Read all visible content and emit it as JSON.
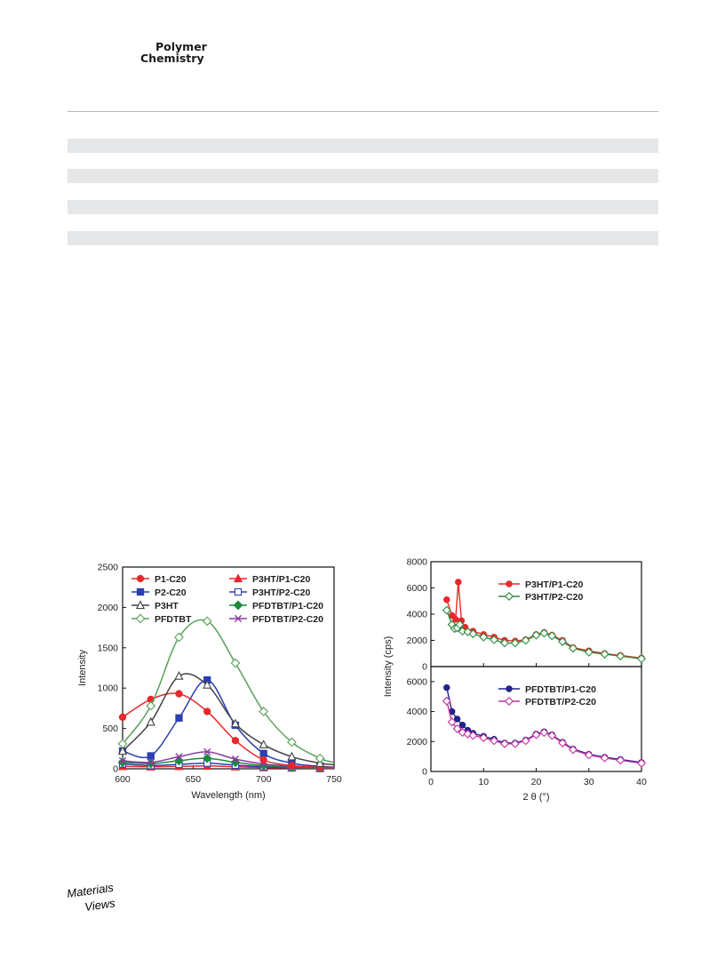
{
  "header": {
    "journal_line1": "Polymer",
    "journal_line2": "Chemistry"
  },
  "footer": {
    "logo_line1": "Materials",
    "logo_line2": "Views"
  },
  "colors": {
    "band": "#e6e7e8",
    "red": "#e8282a",
    "blue": "#2a3fb0",
    "navy": "#23238a",
    "green": "#3a9a3a",
    "darkgreen": "#1c8a3c",
    "pfdtbt": "#2e8b3e",
    "purple": "#8a3aa0",
    "magenta": "#c030a0",
    "gray": "#444444"
  },
  "chart_data": [
    {
      "type": "line",
      "xlabel": "Wavelength (nm)",
      "ylabel": "Intensity",
      "xlim": [
        600,
        750
      ],
      "ylim": [
        0,
        2500
      ],
      "xticks": [
        "600",
        "650",
        "700",
        "750"
      ],
      "yticks": [
        "0",
        "500",
        "1000",
        "1500",
        "2000",
        "2500"
      ],
      "legend": "top",
      "series": [
        {
          "name": "P1-C20",
          "color": "#e8282a",
          "marker": "circle",
          "filled": true,
          "x": [
            600,
            620,
            640,
            660,
            680,
            700,
            720,
            740,
            750
          ],
          "y": [
            640,
            860,
            930,
            710,
            350,
            110,
            40,
            20,
            15
          ]
        },
        {
          "name": "P2-C20",
          "color": "#2a3fb0",
          "marker": "square",
          "filled": true,
          "x": [
            600,
            620,
            640,
            660,
            680,
            700,
            720,
            740,
            750
          ],
          "y": [
            220,
            160,
            630,
            1100,
            540,
            190,
            70,
            30,
            20
          ]
        },
        {
          "name": "P3HT",
          "color": "#444444",
          "marker": "triangle",
          "filled": false,
          "x": [
            600,
            620,
            640,
            660,
            680,
            700,
            720,
            740,
            750
          ],
          "y": [
            220,
            580,
            1150,
            1040,
            560,
            300,
            150,
            70,
            50
          ]
        },
        {
          "name": "PFDTBT",
          "color": "#5aa05a",
          "marker": "diamond",
          "filled": false,
          "x": [
            600,
            620,
            640,
            660,
            680,
            700,
            720,
            740,
            750
          ],
          "y": [
            310,
            780,
            1630,
            1830,
            1310,
            710,
            330,
            130,
            80
          ]
        },
        {
          "name": "P3HT/P1-C20",
          "color": "#e8282a",
          "marker": "triangle",
          "filled": true,
          "x": [
            600,
            620,
            640,
            660,
            680,
            700,
            720,
            740,
            750
          ],
          "y": [
            30,
            25,
            30,
            35,
            25,
            15,
            10,
            5,
            5
          ]
        },
        {
          "name": "P3HT/P2-C20",
          "color": "#2a3fb0",
          "marker": "square",
          "filled": false,
          "x": [
            600,
            620,
            640,
            660,
            680,
            700,
            720,
            740,
            750
          ],
          "y": [
            60,
            40,
            55,
            70,
            45,
            25,
            15,
            10,
            5
          ]
        },
        {
          "name": "PFDTBT/P1-C20",
          "color": "#1c8a3c",
          "marker": "diamond",
          "filled": true,
          "x": [
            600,
            620,
            640,
            660,
            680,
            700,
            720,
            740,
            750
          ],
          "y": [
            80,
            65,
            100,
            130,
            80,
            40,
            20,
            10,
            8
          ]
        },
        {
          "name": "PFDTBT/P2-C20",
          "color": "#8a3aa0",
          "marker": "x",
          "filled": false,
          "x": [
            600,
            620,
            640,
            660,
            680,
            700,
            720,
            740,
            750
          ],
          "y": [
            100,
            80,
            150,
            210,
            120,
            60,
            30,
            15,
            10
          ]
        }
      ]
    },
    {
      "type": "line",
      "xlabel": "2 θ (°)",
      "ylabel": "Intensity (cps)",
      "xlim": [
        0,
        40
      ],
      "xticks": [
        "0",
        "10",
        "20",
        "30",
        "40"
      ],
      "panels": [
        {
          "ylim": [
            0,
            8000
          ],
          "yticks": [
            "0",
            "2000",
            "4000",
            "6000",
            "8000"
          ],
          "legend": "top-center",
          "series": [
            {
              "name": "P3HT/P1-C20",
              "color": "#e8282a",
              "marker": "circle",
              "filled": true,
              "x": [
                3,
                4,
                4.7,
                5.2,
                5.8,
                6.5,
                8,
                10,
                12,
                14,
                16,
                18,
                20,
                21.5,
                23,
                25,
                27,
                30,
                33,
                36,
                40
              ],
              "y": [
                5100,
                3900,
                3600,
                6450,
                3500,
                3000,
                2700,
                2450,
                2250,
                2000,
                1950,
                2050,
                2450,
                2600,
                2400,
                2000,
                1450,
                1200,
                1000,
                850,
                650
              ]
            },
            {
              "name": "P3HT/P2-C20",
              "color": "#2e8b3e",
              "marker": "diamond",
              "filled": false,
              "x": [
                3,
                4,
                4.5,
                5,
                5.5,
                6,
                7,
                8,
                10,
                12,
                14,
                16,
                18,
                20,
                21.5,
                23,
                25,
                27,
                30,
                33,
                36,
                40
              ],
              "y": [
                4300,
                3200,
                2900,
                2950,
                3200,
                2700,
                2650,
                2500,
                2250,
                2050,
                1800,
                1800,
                2000,
                2400,
                2550,
                2350,
                1900,
                1400,
                1100,
                950,
                800,
                600
              ]
            }
          ]
        },
        {
          "ylim": [
            0,
            7000
          ],
          "yticks": [
            "0",
            "2000",
            "4000",
            "6000"
          ],
          "legend": "top-center",
          "series": [
            {
              "name": "PFDTBT/P1-C20",
              "color": "#23238a",
              "marker": "circle",
              "filled": true,
              "x": [
                3,
                4,
                5,
                6,
                7,
                8,
                10,
                12,
                14,
                16,
                18,
                20,
                21.5,
                23,
                25,
                27,
                30,
                33,
                36,
                40
              ],
              "y": [
                5600,
                4000,
                3500,
                3100,
                2750,
                2550,
                2350,
                2150,
                1900,
                1900,
                2100,
                2500,
                2650,
                2450,
                1950,
                1500,
                1150,
                950,
                800,
                600
              ]
            },
            {
              "name": "PFDTBT/P2-C20",
              "color": "#c030a0",
              "marker": "diamond",
              "filled": false,
              "x": [
                3,
                4,
                5,
                6,
                7,
                8,
                10,
                12,
                14,
                16,
                18,
                20,
                21.5,
                23,
                25,
                27,
                30,
                33,
                36,
                40
              ],
              "y": [
                4700,
                3300,
                2850,
                2600,
                2500,
                2400,
                2250,
                2050,
                1850,
                1850,
                2050,
                2450,
                2600,
                2400,
                1900,
                1450,
                1100,
                900,
                750,
                550
              ]
            }
          ]
        }
      ]
    }
  ]
}
